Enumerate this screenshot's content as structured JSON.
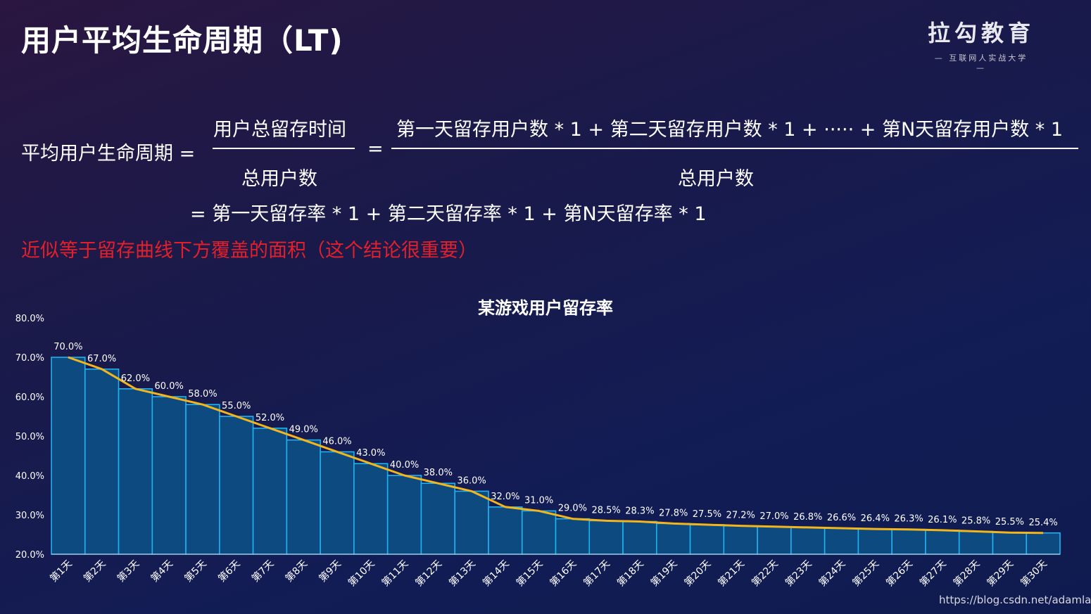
{
  "header": {
    "title": "用户平均生命周期（LT)"
  },
  "logo": {
    "main": "拉勾教育",
    "sub": "— 互联网人实战大学 —"
  },
  "formula": {
    "lhs": "平均用户生命周期 =",
    "frac1_num": "用户总留存时间",
    "frac1_den": "总用户数",
    "eq": "=",
    "frac2_num": "第一天留存用户数 * 1 + 第二天留存用户数 * 1 + ····· + 第N天留存用户数 * 1",
    "frac2_den": "总用户数",
    "line2": "= 第一天留存率 * 1 + 第二天留存率 * 1 + 第N天留存率 * 1"
  },
  "conclusion": "近似等于留存曲线下方覆盖的面积（这个结论很重要）",
  "watermark": "https://blog.csdn.net/adamlay",
  "colors": {
    "bar_fill": "#0c4a80",
    "bar_stroke": "#1fb2f0",
    "line": "#f2b51c",
    "conclusion": "#e3202a"
  },
  "chart_data": {
    "type": "bar",
    "title": "某游戏用户留存率",
    "categories": [
      "第1天",
      "第2天",
      "第3天",
      "第4天",
      "第5天",
      "第6天",
      "第7天",
      "第8天",
      "第9天",
      "第10天",
      "第11天",
      "第12天",
      "第13天",
      "第14天",
      "第15天",
      "第16天",
      "第17天",
      "第18天",
      "第19天",
      "第20天",
      "第21天",
      "第22天",
      "第23天",
      "第24天",
      "第25天",
      "第26天",
      "第27天",
      "第28天",
      "第29天",
      "第30天"
    ],
    "values": [
      70.0,
      67.0,
      62.0,
      60.0,
      58.0,
      55.0,
      52.0,
      49.0,
      46.0,
      43.0,
      40.0,
      38.0,
      36.0,
      32.0,
      31.0,
      29.0,
      28.5,
      28.3,
      27.8,
      27.5,
      27.2,
      27.0,
      26.8,
      26.6,
      26.4,
      26.3,
      26.1,
      25.8,
      25.5,
      25.4
    ],
    "value_labels": [
      "70.0%",
      "67.0%",
      "62.0%",
      "60.0%",
      "58.0%",
      "55.0%",
      "52.0%",
      "49.0%",
      "46.0%",
      "43.0%",
      "40.0%",
      "38.0%",
      "36.0%",
      "32.0%",
      "31.0%",
      "29.0%",
      "28.5%",
      "28.3%",
      "27.8%",
      "27.5%",
      "27.2%",
      "27.0%",
      "26.8%",
      "26.6%",
      "26.4%",
      "26.3%",
      "26.1%",
      "25.8%",
      "25.5%",
      "25.4%"
    ],
    "overlay": "line",
    "ylim": [
      20,
      80
    ],
    "yticks": [
      "20.0%",
      "30.0%",
      "40.0%",
      "50.0%",
      "60.0%",
      "70.0%",
      "80.0%"
    ],
    "xlabel": "",
    "ylabel": "",
    "grid": false
  }
}
